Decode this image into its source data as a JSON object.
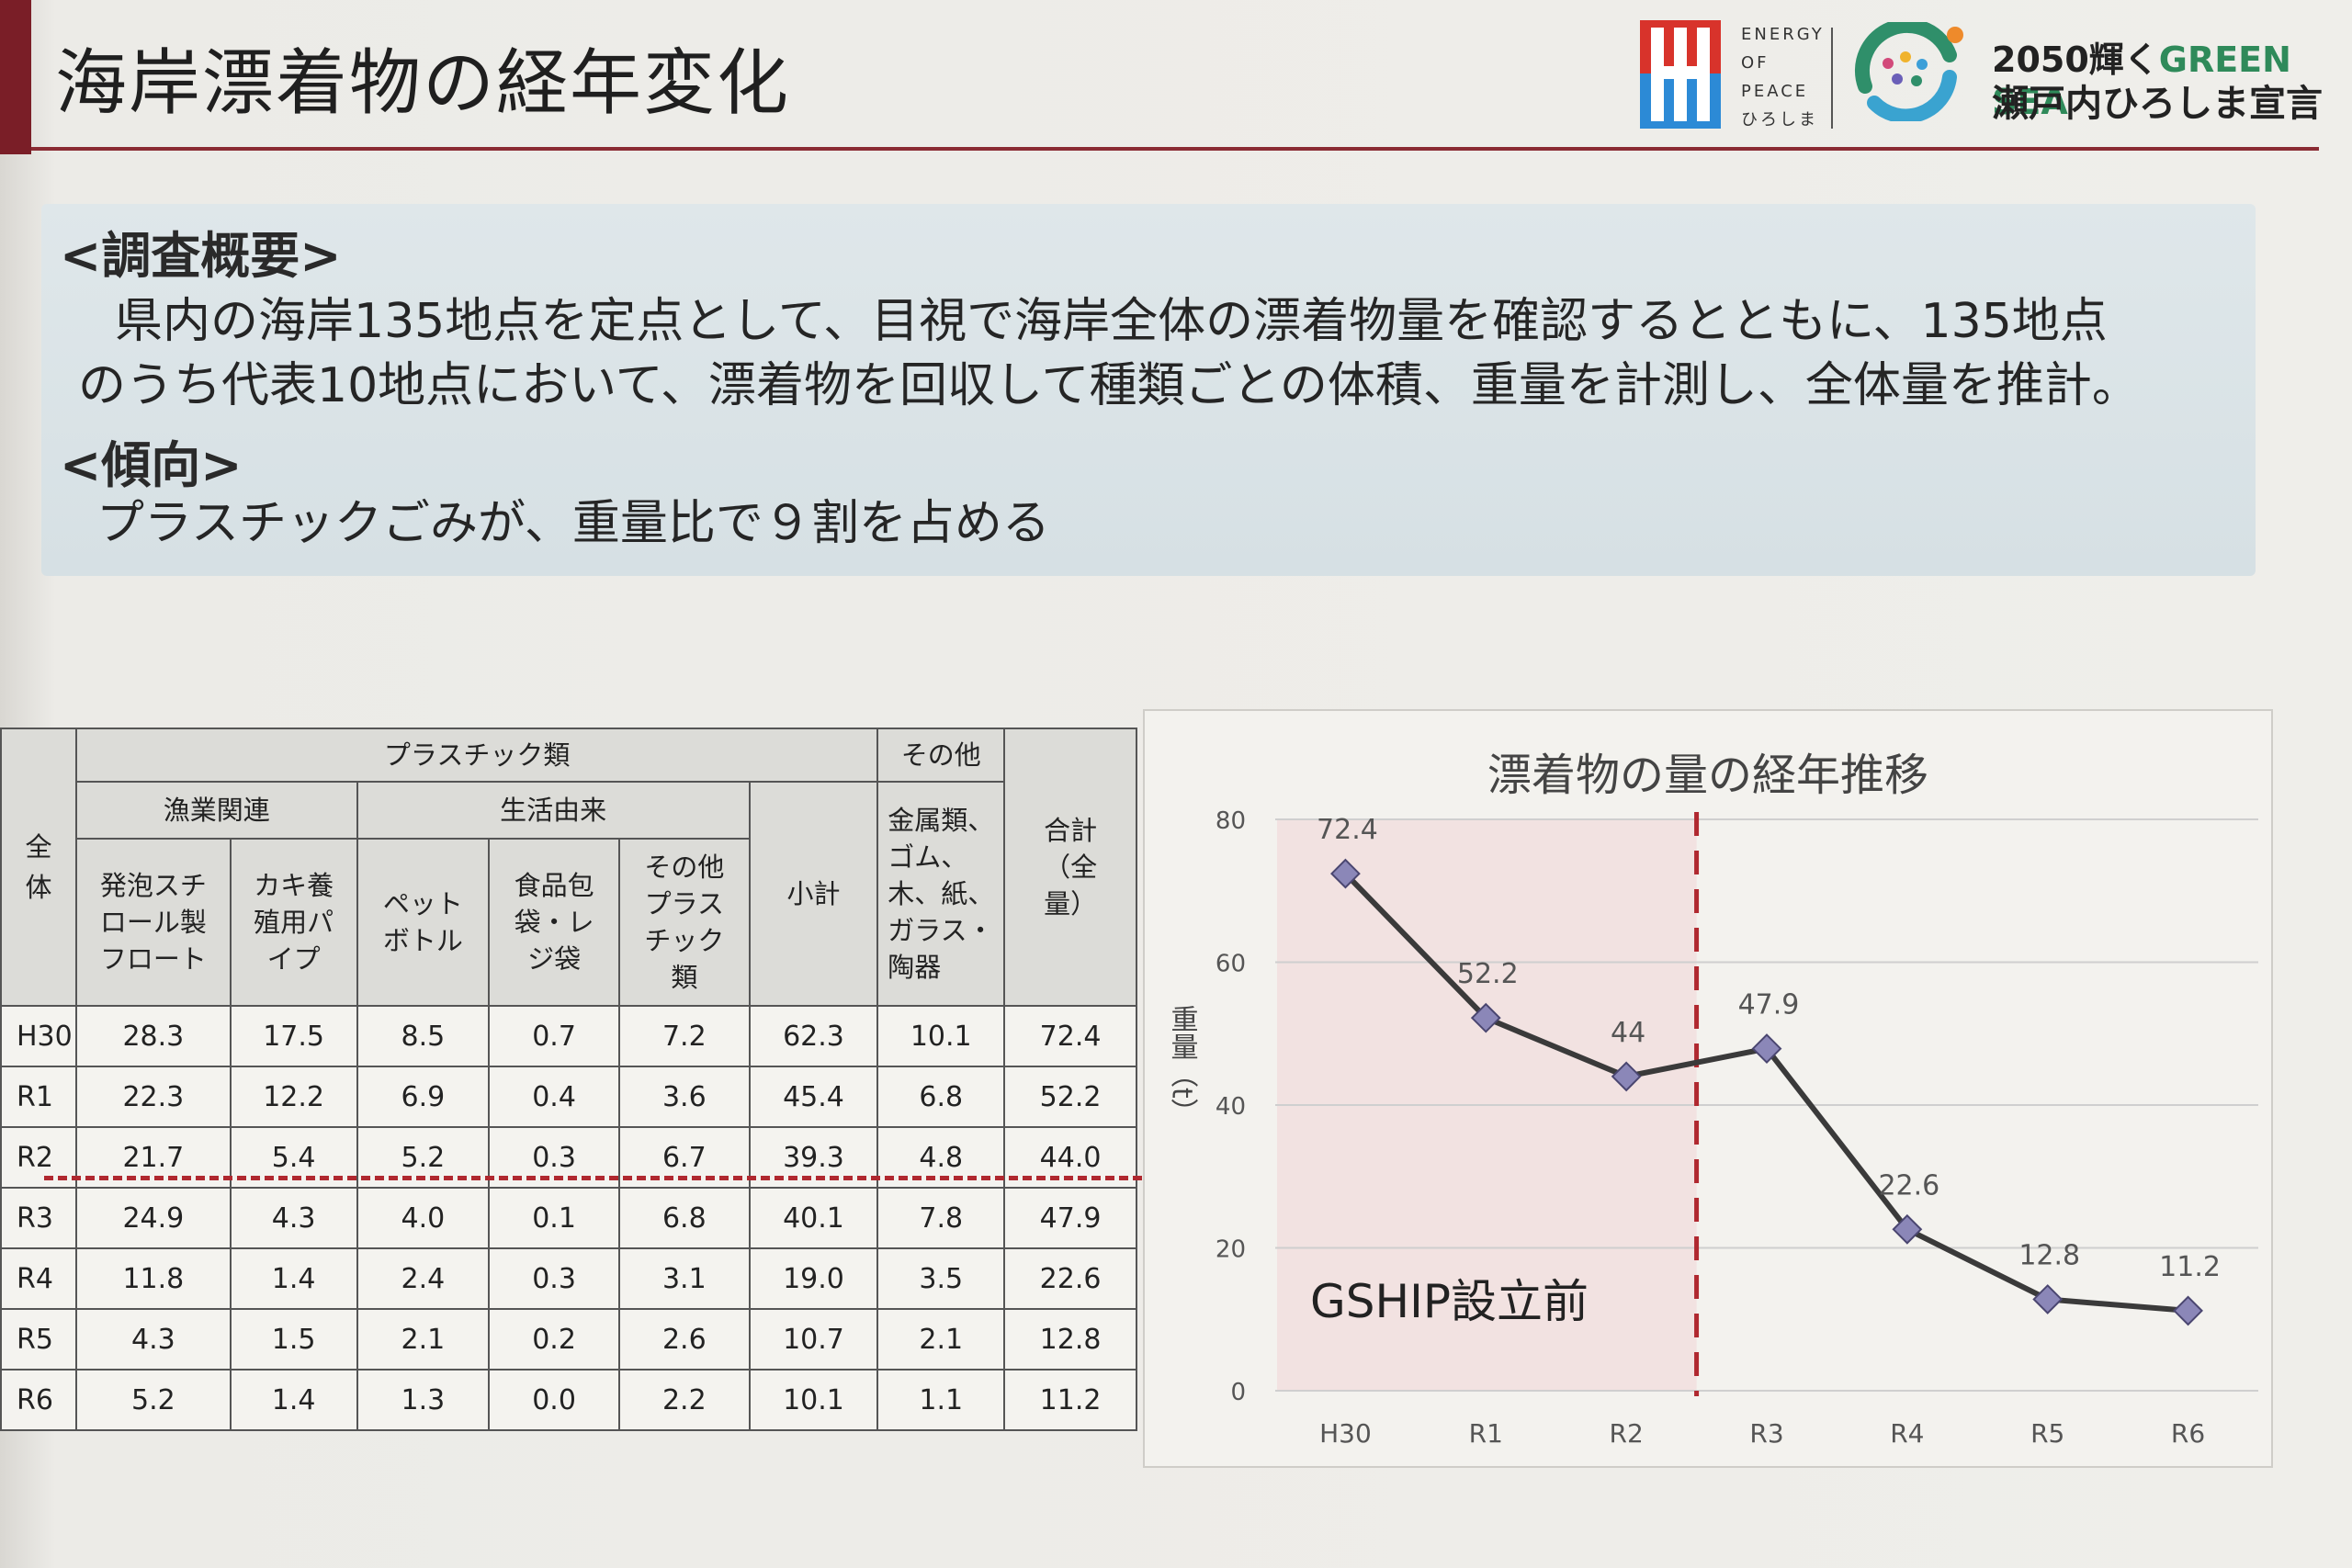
{
  "header": {
    "title": "海岸漂着物の経年変化",
    "logo_energy_lines": [
      "ENERGY",
      "OF",
      "PEACE",
      "ひろしま"
    ],
    "logo_green_sea_line1_prefix": "2050輝く",
    "logo_green_sea_line1_highlight": "GREEN SEA",
    "logo_green_sea_line2": "瀬戸内ひろしま宣言"
  },
  "summary": {
    "survey_heading": "<調査概要>",
    "survey_line1": "県内の海岸135地点を定点として、目視で海岸全体の漂着物量を確認するとともに、135地点",
    "survey_line2": "のうち代表10地点において、漂着物を回収して種類ごとの体積、重量を計測し、全体量を推計。",
    "trend_heading": "<傾向>",
    "trend_text": "プラスチックごみが、重量比で９割を占める"
  },
  "table": {
    "h_zentai": "全体",
    "h_plastic": "プラスチック類",
    "h_other": "その他",
    "h_fishery": "漁業関連",
    "h_life": "生活由来",
    "h_subtotal": "小計",
    "h_metal": "金属類、ゴム、木、紙、ガラス・陶器",
    "h_total": "合計（全量）",
    "h_styrofoam": "発泡スチロール製フロート",
    "h_oyster": "カキ養殖用パイプ",
    "h_pet": "ペットボトル",
    "h_foodbag": "食品包袋・レジ袋",
    "h_otherplastic": "その他プラスチック類",
    "rows": [
      {
        "era": "H30",
        "v": [
          "28.3",
          "17.5",
          "8.5",
          "0.7",
          "7.2",
          "62.3",
          "10.1",
          "72.4"
        ]
      },
      {
        "era": "R1",
        "v": [
          "22.3",
          "12.2",
          "6.9",
          "0.4",
          "3.6",
          "45.4",
          "6.8",
          "52.2"
        ]
      },
      {
        "era": "R2",
        "v": [
          "21.7",
          "5.4",
          "5.2",
          "0.3",
          "6.7",
          "39.3",
          "4.8",
          "44.0"
        ]
      },
      {
        "era": "R3",
        "v": [
          "24.9",
          "4.3",
          "4.0",
          "0.1",
          "6.8",
          "40.1",
          "7.8",
          "47.9"
        ]
      },
      {
        "era": "R4",
        "v": [
          "11.8",
          "1.4",
          "2.4",
          "0.3",
          "3.1",
          "19.0",
          "3.5",
          "22.6"
        ]
      },
      {
        "era": "R5",
        "v": [
          "4.3",
          "1.5",
          "2.1",
          "0.2",
          "2.6",
          "10.7",
          "2.1",
          "12.8"
        ]
      },
      {
        "era": "R6",
        "v": [
          "5.2",
          "1.4",
          "1.3",
          "0.0",
          "2.2",
          "10.1",
          "1.1",
          "11.2"
        ]
      }
    ]
  },
  "chart_data": {
    "type": "line",
    "title": "漂着物の量の経年推移",
    "ylabel": "重量（t）",
    "xlabel": "",
    "categories": [
      "H30",
      "R1",
      "R2",
      "R3",
      "R4",
      "R5",
      "R6"
    ],
    "values": [
      72.4,
      52.2,
      44,
      47.9,
      22.6,
      12.8,
      11.2
    ],
    "value_labels": [
      "72.4",
      "52.2",
      "44",
      "47.9",
      "22.6",
      "12.8",
      "11.2"
    ],
    "ylim": [
      0,
      80
    ],
    "yticks": [
      0,
      20,
      40,
      60,
      80
    ],
    "grid": true,
    "legend": "none",
    "annotation": "GSHIP設立前",
    "line_color": "#3a3a3a",
    "marker_color": "#8b87b8",
    "shade_color": "#f1dcdc",
    "divider_color": "#b0282f"
  }
}
